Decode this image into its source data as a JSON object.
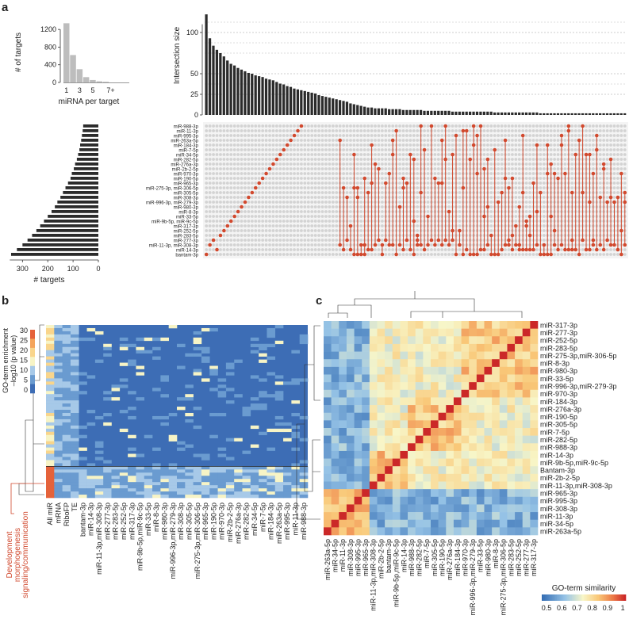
{
  "panels": {
    "a": "a",
    "b": "b",
    "c": "c"
  },
  "chart_data": [
    {
      "type": "bar",
      "name": "miRNA per target histogram",
      "categories": [
        "1",
        "2",
        "3",
        "4",
        "5",
        "6",
        "7+"
      ],
      "values": [
        1340,
        620,
        300,
        120,
        55,
        25,
        15
      ],
      "tick_labels": [
        "1",
        "3",
        "5",
        "7+"
      ],
      "xlabel": "miRNA per target",
      "ylabel": "# of targets",
      "yticks": [
        0,
        400,
        800,
        1200
      ],
      "ylim": [
        0,
        1400
      ]
    },
    {
      "type": "bar",
      "name": "UpSet intersection sizes",
      "ylabel": "Intersection size",
      "yticks": [
        0,
        25,
        50,
        100
      ],
      "ylim": [
        0,
        125
      ],
      "values": [
        122,
        93,
        84,
        79,
        75,
        71,
        66,
        62,
        60,
        57,
        55,
        53,
        51,
        50,
        48,
        47,
        46,
        44,
        43,
        42,
        40,
        38,
        37,
        35,
        34,
        32,
        31,
        30,
        29,
        28,
        27,
        26,
        24,
        23,
        22,
        21,
        20,
        19,
        18,
        17,
        16,
        14,
        13,
        12,
        11,
        10,
        9,
        9,
        8,
        8,
        8,
        8,
        7,
        7,
        7,
        7,
        6,
        6,
        6,
        6,
        6,
        6,
        5,
        5,
        5,
        5,
        5,
        5,
        5,
        5,
        4,
        4,
        4,
        4,
        4,
        4,
        4,
        4,
        4,
        4,
        4,
        4,
        3,
        3,
        3,
        3,
        3,
        3,
        3,
        3,
        3,
        3,
        3,
        3,
        3,
        2,
        2,
        2,
        2,
        2,
        2,
        2,
        2,
        2,
        2,
        2,
        2,
        2,
        2,
        2,
        2,
        2,
        2,
        2,
        2,
        2,
        2,
        2,
        2,
        2
      ]
    },
    {
      "type": "bar",
      "name": "Targets per miRNA",
      "orientation": "horizontal-reversed",
      "xlabel": "# targets",
      "xticks": [
        0,
        100,
        200,
        300
      ],
      "xlim": [
        0,
        370
      ],
      "categories": [
        "miR-988-3p",
        "miR-11-3p",
        "miR-995-3p",
        "miR-263a-5p",
        "miR-184-3p",
        "miR-7-5p",
        "miR-34-5p",
        "miR-282-5p",
        "miR-276a-3p",
        "miR-2b-2-5p",
        "miR-970-3p",
        "miR-190-5p",
        "miR-965-3p",
        "miR-275-3p, miR-306-5p",
        "miR-305-5p",
        "miR-308-3p",
        "miR-996-3p, miR-279-3p",
        "miR-980-3p",
        "miR-8-3p",
        "miR-33-5p",
        "miR-9b-5p, miR-9c-5p",
        "miR-317-3p",
        "miR-252-5p",
        "miR-283-5p",
        "miR-277-3p",
        "miR-11-3p, miR-308-3p",
        "miR-14-3p",
        "bantam-3p"
      ],
      "values": [
        60,
        62,
        65,
        68,
        72,
        75,
        80,
        85,
        92,
        97,
        105,
        110,
        120,
        130,
        140,
        150,
        162,
        172,
        185,
        200,
        215,
        230,
        245,
        262,
        280,
        300,
        322,
        345
      ]
    },
    {
      "type": "heatmap",
      "name": "GO-term enrichment heatmap",
      "legend_title": "GO-term enrichment",
      "legend_unit": "–log10 (p value)",
      "legend_ticks": [
        "30",
        "25",
        "20",
        "15",
        "10",
        "5",
        "0"
      ],
      "columns": [
        "All miR",
        "mRNA",
        "RiboFP",
        "TE",
        "bantam-3p",
        "miR-14-3p",
        "miR-11-3p,miR-308-3p",
        "miR-277-3p",
        "miR-283-5p",
        "miR-252-5p",
        "miR-317-3p",
        "miR-9b-5p,miR-9c-5p",
        "miR-33-5p",
        "miR-8-3p",
        "miR-980-3p",
        "miR-996-3p,miR-279-3p",
        "miR-308-3p",
        "miR-305-5p",
        "miR-275-3p,miR-306-5p",
        "miR-965-3p",
        "miR-190-5p",
        "miR-970-3p",
        "miR-2b-2-5p",
        "miR-276a-3p",
        "miR-282-5p",
        "miR-34-5p",
        "miR-7-5p",
        "miR-184-3p",
        "miR-263a-5p",
        "miR-995-3p",
        "miR-11-3p",
        "miR-988-3p"
      ],
      "cluster_annotation": [
        "Development",
        "morphogenesis",
        "signaling/communication"
      ]
    },
    {
      "type": "heatmap",
      "name": "GO-term similarity matrix",
      "legend_title": "GO-term similarity",
      "legend_ticks": [
        "0.5",
        "0.6",
        "0.7",
        "0.8",
        "0.9",
        "1"
      ],
      "row_labels": [
        "miR-317-3p",
        "miR-277-3p",
        "miR-252-5p",
        "miR-283-5p",
        "miR-275-3p,miR-306-5p",
        "miR-8-3p",
        "miR-980-3p",
        "miR-33-5p",
        "miR-996-3p,miR-279-3p",
        "miR-970-3p",
        "miR-184-3p",
        "miR-276a-3p",
        "miR-190-5p",
        "miR-305-5p",
        "miR-7-5p",
        "miR-282-5p",
        "miR-988-3p",
        "miR-14-3p",
        "miR-9b-5p,miR-9c-5p",
        "Bantam-3p",
        "miR-2b-2-5p",
        "miR-11-3p,miR-308-3p",
        "miR-965-3p",
        "miR-995-3p",
        "miR-308-3p",
        "miR-11-3p",
        "miR-34-5p",
        "miR-263a-5p"
      ],
      "col_labels": [
        "miR-263a-5p",
        "miR-34-5p",
        "miR-11-3p",
        "miR-308-3p",
        "miR-995-3p",
        "miR-965-3p",
        "miR-11-3p,miR-308-3p",
        "miR-2b-2-5p",
        "bantam-3p",
        "miR-9b-5p,miR-9c-5p",
        "miR-14-3p",
        "miR-988-3p",
        "miR-282-5p",
        "miR-7-5p",
        "miR-305-5p",
        "miR-190-5p",
        "miR-276a-3p",
        "miR-184-3p",
        "miR-970-3p",
        "miR-996-3p,miR-279-3p",
        "miR-33-5p",
        "miR-980-3p",
        "miR-8-3p",
        "miR-275-3p,miR-306-5p",
        "miR-283-5p",
        "miR-252-5p",
        "miR-277-3p",
        "miR-317-3p"
      ]
    }
  ]
}
